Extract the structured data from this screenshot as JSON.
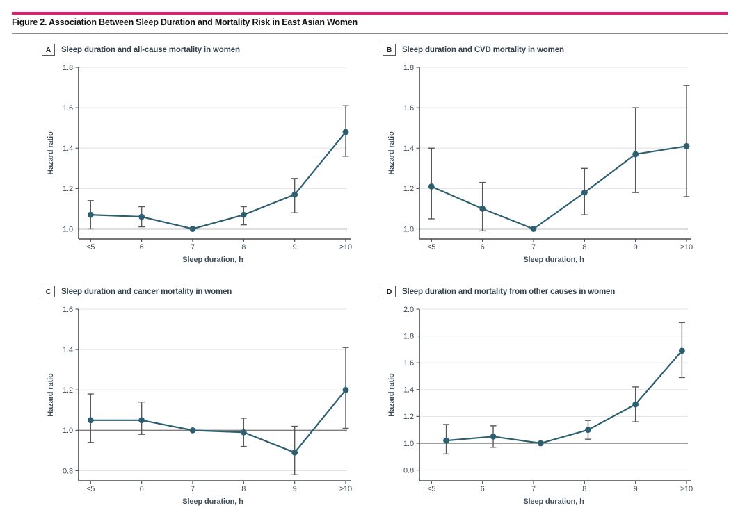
{
  "figure": {
    "title": "Figure 2. Association Between Sleep Duration and Mortality Risk in East Asian Women"
  },
  "colors": {
    "accent_rule_pink": "#ea1a70",
    "divider_gray": "#8a8a8a",
    "series_teal": "#2d5f71",
    "error_bar_gray": "#55595e",
    "reference_line_gray": "#7f7f7f",
    "gridline_gray": "#e3e3e3",
    "axis_dark": "#47494c",
    "tick_text": "#3d4c58",
    "panel_title_text": "#33424e"
  },
  "chart_data": [
    {
      "panel": "A",
      "title": "Sleep duration and all-cause mortality in women",
      "type": "line",
      "categories": [
        "≤5",
        "6",
        "7",
        "8",
        "9",
        "≥10"
      ],
      "xlabel": "Sleep duration, h",
      "ylabel": "Hazard ratio",
      "yticks": [
        1.0,
        1.2,
        1.4,
        1.6,
        1.8
      ],
      "ylim": [
        0.95,
        1.8
      ],
      "reference_line": 1.0,
      "grid": true,
      "legend": "none",
      "points": [
        {
          "category": "≤5",
          "hr": 1.07,
          "ci_low": 1.0,
          "ci_high": 1.14
        },
        {
          "category": "6",
          "hr": 1.06,
          "ci_low": 1.01,
          "ci_high": 1.11
        },
        {
          "category": "7",
          "hr": 1.0,
          "ci_low": null,
          "ci_high": null
        },
        {
          "category": "8",
          "hr": 1.07,
          "ci_low": 1.02,
          "ci_high": 1.11
        },
        {
          "category": "9",
          "hr": 1.17,
          "ci_low": 1.08,
          "ci_high": 1.25
        },
        {
          "category": "≥10",
          "hr": 1.48,
          "ci_low": 1.36,
          "ci_high": 1.61
        }
      ]
    },
    {
      "panel": "B",
      "title": "Sleep duration and CVD mortality in women",
      "type": "line",
      "categories": [
        "≤5",
        "6",
        "7",
        "8",
        "9",
        "≥10"
      ],
      "xlabel": "Sleep duration, h",
      "ylabel": "Hazard ratio",
      "yticks": [
        1.0,
        1.2,
        1.4,
        1.6,
        1.8
      ],
      "ylim": [
        0.95,
        1.8
      ],
      "reference_line": 1.0,
      "grid": true,
      "legend": "none",
      "points": [
        {
          "category": "≤5",
          "hr": 1.21,
          "ci_low": 1.05,
          "ci_high": 1.4
        },
        {
          "category": "6",
          "hr": 1.1,
          "ci_low": 0.99,
          "ci_high": 1.23
        },
        {
          "category": "7",
          "hr": 1.0,
          "ci_low": null,
          "ci_high": null
        },
        {
          "category": "8",
          "hr": 1.18,
          "ci_low": 1.07,
          "ci_high": 1.3
        },
        {
          "category": "9",
          "hr": 1.37,
          "ci_low": 1.18,
          "ci_high": 1.6
        },
        {
          "category": "≥10",
          "hr": 1.41,
          "ci_low": 1.16,
          "ci_high": 1.71
        }
      ]
    },
    {
      "panel": "C",
      "title": "Sleep duration and cancer mortality in women",
      "type": "line",
      "categories": [
        "≤5",
        "6",
        "7",
        "8",
        "9",
        "≥10"
      ],
      "xlabel": "Sleep duration, h",
      "ylabel": "Hazard ratio",
      "yticks": [
        0.8,
        1.0,
        1.2,
        1.4,
        1.6
      ],
      "ylim": [
        0.75,
        1.6
      ],
      "reference_line": 1.0,
      "grid": true,
      "legend": "none",
      "points": [
        {
          "category": "≤5",
          "hr": 1.05,
          "ci_low": 0.94,
          "ci_high": 1.18
        },
        {
          "category": "6",
          "hr": 1.05,
          "ci_low": 0.98,
          "ci_high": 1.14
        },
        {
          "category": "7",
          "hr": 1.0,
          "ci_low": null,
          "ci_high": null
        },
        {
          "category": "8",
          "hr": 0.99,
          "ci_low": 0.92,
          "ci_high": 1.06
        },
        {
          "category": "9",
          "hr": 0.89,
          "ci_low": 0.78,
          "ci_high": 1.02
        },
        {
          "category": "≥10",
          "hr": 1.2,
          "ci_low": 1.01,
          "ci_high": 1.41
        }
      ]
    },
    {
      "panel": "D",
      "title": "Sleep duration and mortality from other causes in women",
      "type": "line",
      "categories": [
        "≤5",
        "6",
        "7",
        "8",
        "9",
        "≥10"
      ],
      "xlabel": "Sleep duration, h",
      "ylabel": "Hazard ratio",
      "yticks": [
        0.8,
        1.0,
        1.2,
        1.4,
        1.6,
        1.8,
        2.0
      ],
      "ylim": [
        0.72,
        2.0
      ],
      "reference_line": 1.0,
      "grid": true,
      "legend": "none",
      "x_positions": [
        0.29,
        1.21,
        2.14,
        3.07,
        4.0,
        4.91
      ],
      "points": [
        {
          "category": "≤5",
          "hr": 1.02,
          "ci_low": 0.92,
          "ci_high": 1.14
        },
        {
          "category": "6",
          "hr": 1.05,
          "ci_low": 0.97,
          "ci_high": 1.13
        },
        {
          "category": "7",
          "hr": 1.0,
          "ci_low": null,
          "ci_high": null
        },
        {
          "category": "8",
          "hr": 1.1,
          "ci_low": 1.03,
          "ci_high": 1.17
        },
        {
          "category": "9",
          "hr": 1.29,
          "ci_low": 1.16,
          "ci_high": 1.42
        },
        {
          "category": "≥10",
          "hr": 1.69,
          "ci_low": 1.49,
          "ci_high": 1.9
        }
      ]
    }
  ]
}
